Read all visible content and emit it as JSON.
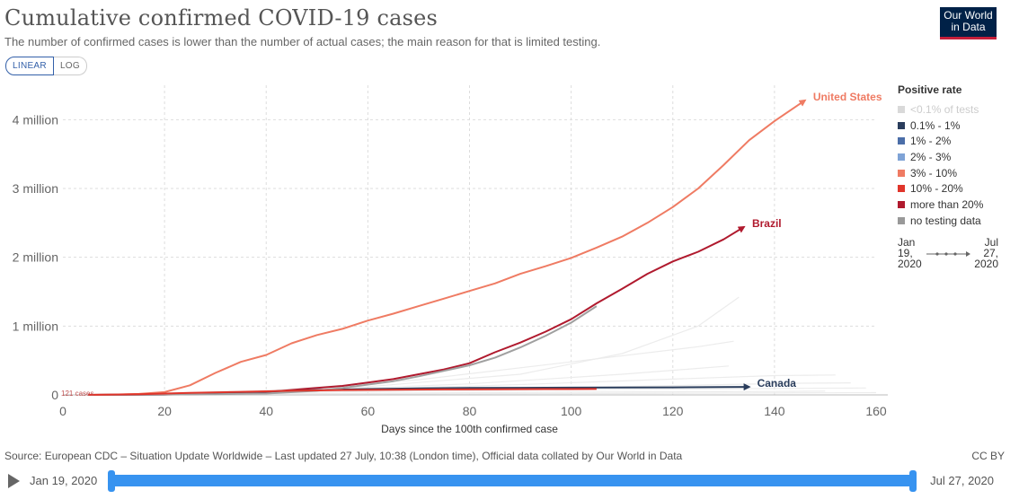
{
  "header": {
    "title": "Cumulative confirmed COVID-19 cases",
    "subtitle": "The number of confirmed cases is lower than the number of actual cases; the main reason for that is limited testing.",
    "logo_line1": "Our World",
    "logo_line2": "in Data"
  },
  "scale_toggle": {
    "linear": "LINEAR",
    "log": "LOG"
  },
  "legend": {
    "title": "Positive rate",
    "items": [
      {
        "label": "<0.1% of tests",
        "color": "#d9d9d9"
      },
      {
        "label": "0.1% - 1%",
        "color": "#2a3d5c"
      },
      {
        "label": "1% - 2%",
        "color": "#4b6ea8"
      },
      {
        "label": "2% - 3%",
        "color": "#7fa3d6"
      },
      {
        "label": "3% - 10%",
        "color": "#ef7b63"
      },
      {
        "label": "10% - 20%",
        "color": "#e0352b"
      },
      {
        "label": "more than 20%",
        "color": "#b01a2e"
      },
      {
        "label": "no testing data",
        "color": "#999999"
      }
    ],
    "range_start": [
      "Jan",
      "19,",
      "2020"
    ],
    "range_end": [
      "Jul",
      "27,",
      "2020"
    ]
  },
  "chart_data": {
    "type": "line",
    "xlabel": "Days since the 100th confirmed case",
    "ylabel": "",
    "xlim": [
      0,
      160
    ],
    "ylim": [
      0,
      4500000
    ],
    "x_ticks": [
      0,
      20,
      40,
      60,
      80,
      100,
      120,
      140,
      160
    ],
    "y_ticks": [
      {
        "value": 0,
        "label": "0"
      },
      {
        "value": 1000000,
        "label": "1 million"
      },
      {
        "value": 2000000,
        "label": "2 million"
      },
      {
        "value": 3000000,
        "label": "3 million"
      },
      {
        "value": 4000000,
        "label": "4 million"
      }
    ],
    "grid": true,
    "annotation": "121 cases",
    "series": [
      {
        "name": "United States",
        "color": "#ef7b63",
        "labeled": true,
        "points": [
          [
            5,
            0
          ],
          [
            10,
            5000
          ],
          [
            15,
            15000
          ],
          [
            20,
            40000
          ],
          [
            25,
            140000
          ],
          [
            30,
            320000
          ],
          [
            35,
            480000
          ],
          [
            40,
            580000
          ],
          [
            45,
            750000
          ],
          [
            50,
            870000
          ],
          [
            55,
            960000
          ],
          [
            60,
            1080000
          ],
          [
            65,
            1180000
          ],
          [
            70,
            1290000
          ],
          [
            75,
            1400000
          ],
          [
            80,
            1510000
          ],
          [
            85,
            1620000
          ],
          [
            90,
            1760000
          ],
          [
            95,
            1870000
          ],
          [
            100,
            1990000
          ],
          [
            105,
            2140000
          ],
          [
            110,
            2300000
          ],
          [
            115,
            2500000
          ],
          [
            120,
            2730000
          ],
          [
            125,
            3000000
          ],
          [
            130,
            3340000
          ],
          [
            135,
            3700000
          ],
          [
            140,
            3980000
          ],
          [
            146,
            4280000
          ]
        ]
      },
      {
        "name": "Brazil",
        "color": "#b01a2e",
        "labeled": true,
        "points": [
          [
            5,
            0
          ],
          [
            20,
            5000
          ],
          [
            30,
            15000
          ],
          [
            40,
            40000
          ],
          [
            48,
            90000
          ],
          [
            55,
            130000
          ],
          [
            60,
            180000
          ],
          [
            65,
            230000
          ],
          [
            70,
            300000
          ],
          [
            75,
            370000
          ],
          [
            80,
            460000
          ],
          [
            85,
            620000
          ],
          [
            90,
            760000
          ],
          [
            95,
            920000
          ],
          [
            100,
            1100000
          ],
          [
            105,
            1330000
          ],
          [
            110,
            1540000
          ],
          [
            115,
            1760000
          ],
          [
            120,
            1940000
          ],
          [
            125,
            2080000
          ],
          [
            130,
            2260000
          ],
          [
            134,
            2440000
          ]
        ]
      },
      {
        "name": "Canada",
        "color": "#2a3d5c",
        "labeled": true,
        "points": [
          [
            5,
            0
          ],
          [
            20,
            5000
          ],
          [
            30,
            30000
          ],
          [
            40,
            50000
          ],
          [
            50,
            70000
          ],
          [
            60,
            85000
          ],
          [
            70,
            95000
          ],
          [
            80,
            100000
          ],
          [
            90,
            103000
          ],
          [
            100,
            106000
          ],
          [
            110,
            108000
          ],
          [
            120,
            110000
          ],
          [
            130,
            113000
          ],
          [
            135,
            116000
          ]
        ]
      },
      {
        "name": "",
        "color": "#a0a0a0",
        "labeled": false,
        "points": [
          [
            5,
            0
          ],
          [
            20,
            5000
          ],
          [
            30,
            10000
          ],
          [
            40,
            20000
          ],
          [
            50,
            60000
          ],
          [
            55,
            100000
          ],
          [
            60,
            150000
          ],
          [
            65,
            200000
          ],
          [
            70,
            270000
          ],
          [
            75,
            350000
          ],
          [
            80,
            430000
          ],
          [
            85,
            540000
          ],
          [
            90,
            690000
          ],
          [
            95,
            860000
          ],
          [
            100,
            1050000
          ],
          [
            105,
            1290000
          ]
        ]
      },
      {
        "name": "",
        "color": "#e0352b",
        "labeled": false,
        "points": [
          [
            5,
            0
          ],
          [
            15,
            10000
          ],
          [
            25,
            30000
          ],
          [
            35,
            45000
          ],
          [
            45,
            60000
          ],
          [
            55,
            70000
          ],
          [
            65,
            75000
          ],
          [
            75,
            80000
          ],
          [
            85,
            82000
          ],
          [
            95,
            85000
          ],
          [
            105,
            86000
          ]
        ]
      },
      {
        "name": "",
        "color": "#ececec",
        "labeled": false,
        "points": [
          [
            5,
            0
          ],
          [
            30,
            30000
          ],
          [
            60,
            120000
          ],
          [
            90,
            300000
          ],
          [
            110,
            600000
          ],
          [
            125,
            1000000
          ],
          [
            133,
            1420000
          ]
        ]
      },
      {
        "name": "",
        "color": "#ececec",
        "labeled": false,
        "points": [
          [
            5,
            0
          ],
          [
            40,
            60000
          ],
          [
            70,
            220000
          ],
          [
            100,
            480000
          ],
          [
            125,
            700000
          ],
          [
            132,
            780000
          ]
        ]
      },
      {
        "name": "",
        "color": "#ececec",
        "labeled": false,
        "points": [
          [
            5,
            0
          ],
          [
            40,
            40000
          ],
          [
            80,
            160000
          ],
          [
            110,
            300000
          ],
          [
            131,
            420000
          ]
        ]
      },
      {
        "name": "",
        "color": "#ececec",
        "labeled": false,
        "points": [
          [
            5,
            0
          ],
          [
            50,
            60000
          ],
          [
            90,
            150000
          ],
          [
            120,
            230000
          ],
          [
            140,
            280000
          ],
          [
            152,
            290000
          ]
        ]
      },
      {
        "name": "",
        "color": "#ececec",
        "labeled": false,
        "points": [
          [
            5,
            0
          ],
          [
            40,
            30000
          ],
          [
            90,
            90000
          ],
          [
            130,
            150000
          ],
          [
            145,
            170000
          ],
          [
            155,
            175000
          ]
        ]
      },
      {
        "name": "",
        "color": "#ececec",
        "labeled": false,
        "points": [
          [
            5,
            0
          ],
          [
            30,
            20000
          ],
          [
            70,
            60000
          ],
          [
            110,
            80000
          ],
          [
            145,
            95000
          ],
          [
            158,
            100000
          ]
        ]
      },
      {
        "name": "",
        "color": "#ececec",
        "labeled": false,
        "points": [
          [
            5,
            0
          ],
          [
            50,
            20000
          ],
          [
            100,
            40000
          ],
          [
            140,
            50000
          ],
          [
            150,
            55000
          ]
        ]
      },
      {
        "name": "",
        "color": "#ececec",
        "labeled": false,
        "points": [
          [
            5,
            0
          ],
          [
            40,
            10000
          ],
          [
            100,
            20000
          ],
          [
            150,
            30000
          ],
          [
            160,
            32000
          ]
        ]
      }
    ]
  },
  "footer": {
    "source": "Source: European CDC – Situation Update Worldwide – Last updated 27 July, 10:38 (London time), Official data collated by Our World in Data",
    "license": "CC BY"
  },
  "timeline": {
    "start": "Jan 19, 2020",
    "end": "Jul 27, 2020"
  }
}
